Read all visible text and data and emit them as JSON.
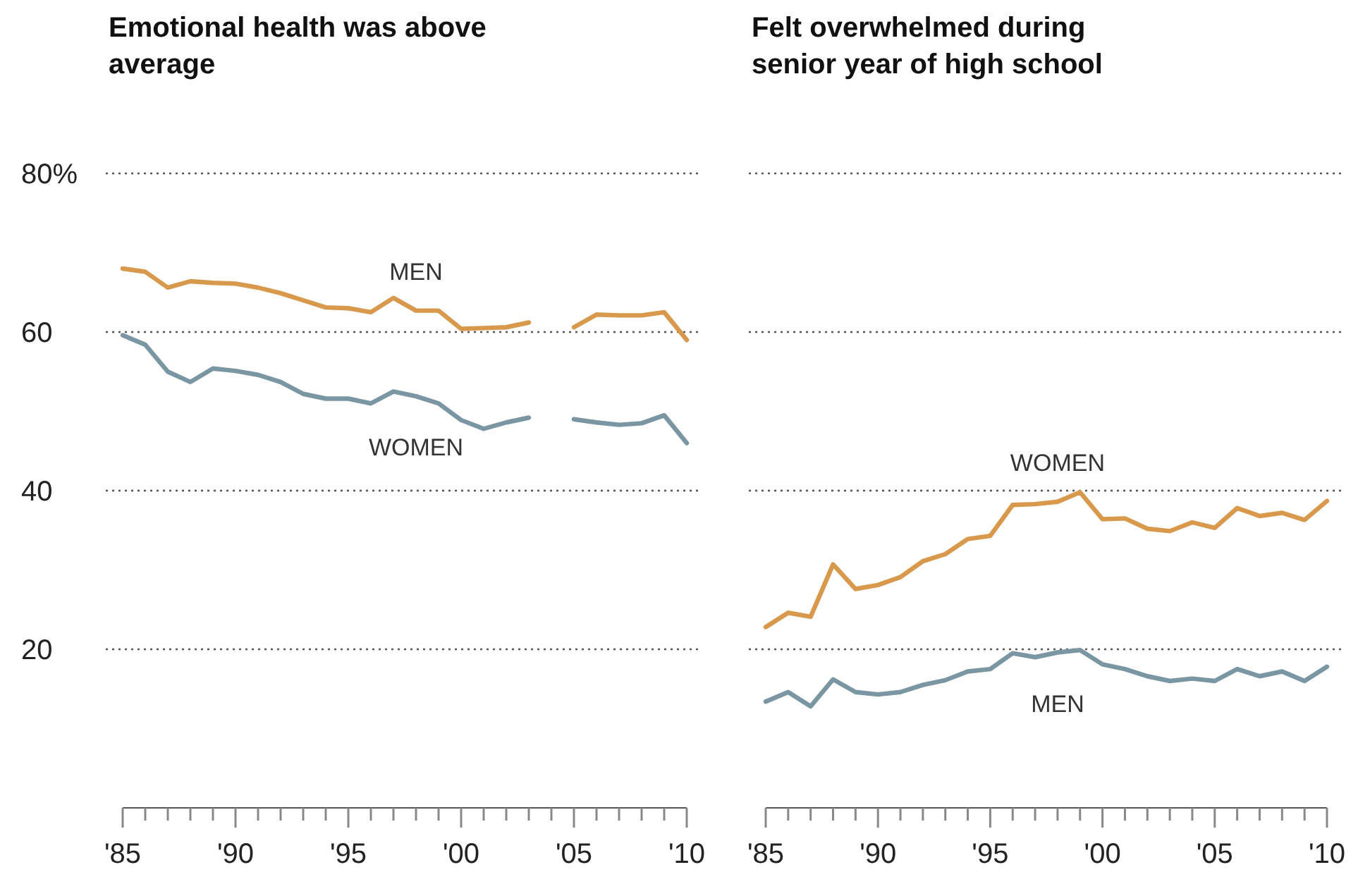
{
  "chart_data": [
    {
      "type": "line",
      "title": "Emotional health was above average",
      "x": [
        1985,
        1986,
        1987,
        1988,
        1989,
        1990,
        1991,
        1992,
        1993,
        1994,
        1995,
        1996,
        1997,
        1998,
        1999,
        2000,
        2001,
        2002,
        2003,
        2004,
        2005,
        2006,
        2007,
        2008,
        2009,
        2010
      ],
      "series": [
        {
          "name": "MEN",
          "color": "#d9994d",
          "values": [
            68,
            67.6,
            65.6,
            66.4,
            66.2,
            66.1,
            65.6,
            64.9,
            64,
            63.1,
            63,
            62.5,
            64.3,
            62.7,
            62.7,
            60.4,
            60.5,
            60.6,
            61.2,
            null,
            60.6,
            62.2,
            62.1,
            62.1,
            62.5,
            59
          ]
        },
        {
          "name": "WOMEN",
          "color": "#7a96a3",
          "values": [
            59.6,
            58.4,
            55,
            53.7,
            55.4,
            55.1,
            54.6,
            53.7,
            52.2,
            51.6,
            51.6,
            51,
            52.5,
            51.9,
            51,
            48.9,
            47.8,
            48.6,
            49.2,
            null,
            49,
            48.6,
            48.3,
            48.5,
            49.5,
            46
          ]
        }
      ],
      "xlim": [
        1985,
        2010
      ],
      "xticks": [
        {
          "value": 1985,
          "label": "'85"
        },
        {
          "value": 1986,
          "label": null
        },
        {
          "value": 1987,
          "label": null
        },
        {
          "value": 1988,
          "label": null
        },
        {
          "value": 1989,
          "label": null
        },
        {
          "value": 1990,
          "label": "'90"
        },
        {
          "value": 1991,
          "label": null
        },
        {
          "value": 1992,
          "label": null
        },
        {
          "value": 1993,
          "label": null
        },
        {
          "value": 1994,
          "label": null
        },
        {
          "value": 1995,
          "label": "'95"
        },
        {
          "value": 1996,
          "label": null
        },
        {
          "value": 1997,
          "label": null
        },
        {
          "value": 1998,
          "label": null
        },
        {
          "value": 1999,
          "label": null
        },
        {
          "value": 2000,
          "label": "'00"
        },
        {
          "value": 2001,
          "label": null
        },
        {
          "value": 2002,
          "label": null
        },
        {
          "value": 2003,
          "label": null
        },
        {
          "value": 2004,
          "label": null
        },
        {
          "value": 2005,
          "label": "'05"
        },
        {
          "value": 2006,
          "label": null
        },
        {
          "value": 2007,
          "label": null
        },
        {
          "value": 2008,
          "label": null
        },
        {
          "value": 2009,
          "label": null
        },
        {
          "value": 2010,
          "label": "'10"
        }
      ],
      "ylim": [
        0,
        80
      ],
      "yticks": [
        20,
        40,
        60,
        {
          "value": 80,
          "label": "80%"
        }
      ],
      "grid": "y",
      "marker": "none",
      "line_style": "solid",
      "legend": false
    },
    {
      "type": "line",
      "title": "Felt overwhelmed during senior year of high school",
      "x": [
        1985,
        1986,
        1987,
        1988,
        1989,
        1990,
        1991,
        1992,
        1993,
        1994,
        1995,
        1996,
        1997,
        1998,
        1999,
        2000,
        2001,
        2002,
        2003,
        2004,
        2005,
        2006,
        2007,
        2008,
        2009,
        2010
      ],
      "series": [
        {
          "name": "WOMEN",
          "color": "#d9994d",
          "values": [
            22.8,
            24.6,
            24.1,
            30.7,
            27.6,
            28.1,
            29.1,
            31.1,
            32,
            33.9,
            34.3,
            38.2,
            38.3,
            38.6,
            39.8,
            36.4,
            36.5,
            35.2,
            34.9,
            36,
            35.3,
            37.8,
            36.8,
            37.2,
            36.3,
            38.7
          ]
        },
        {
          "name": "MEN",
          "color": "#7a96a3",
          "values": [
            13.4,
            14.6,
            12.8,
            16.2,
            14.6,
            14.3,
            14.6,
            15.5,
            16.1,
            17.2,
            17.5,
            19.5,
            19,
            19.6,
            19.9,
            18.1,
            17.5,
            16.6,
            16,
            16.3,
            16,
            17.5,
            16.6,
            17.2,
            16,
            17.8
          ]
        }
      ],
      "xlim": [
        1985,
        2010
      ],
      "xticks": [
        {
          "value": 1985,
          "label": "'85"
        },
        {
          "value": 1986,
          "label": null
        },
        {
          "value": 1987,
          "label": null
        },
        {
          "value": 1988,
          "label": null
        },
        {
          "value": 1989,
          "label": null
        },
        {
          "value": 1990,
          "label": "'90"
        },
        {
          "value": 1991,
          "label": null
        },
        {
          "value": 1992,
          "label": null
        },
        {
          "value": 1993,
          "label": null
        },
        {
          "value": 1994,
          "label": null
        },
        {
          "value": 1995,
          "label": "'95"
        },
        {
          "value": 1996,
          "label": null
        },
        {
          "value": 1997,
          "label": null
        },
        {
          "value": 1998,
          "label": null
        },
        {
          "value": 1999,
          "label": null
        },
        {
          "value": 2000,
          "label": "'00"
        },
        {
          "value": 2001,
          "label": null
        },
        {
          "value": 2002,
          "label": null
        },
        {
          "value": 2003,
          "label": null
        },
        {
          "value": 2004,
          "label": null
        },
        {
          "value": 2005,
          "label": "'05"
        },
        {
          "value": 2006,
          "label": null
        },
        {
          "value": 2007,
          "label": null
        },
        {
          "value": 2008,
          "label": null
        },
        {
          "value": 2009,
          "label": null
        },
        {
          "value": 2010,
          "label": "'10"
        }
      ],
      "ylim": [
        0,
        80
      ],
      "yticks": [
        20,
        40,
        60,
        80
      ],
      "grid": "y",
      "tick_labels": "x",
      "marker": "none",
      "line_style": "solid",
      "legend": false
    }
  ]
}
